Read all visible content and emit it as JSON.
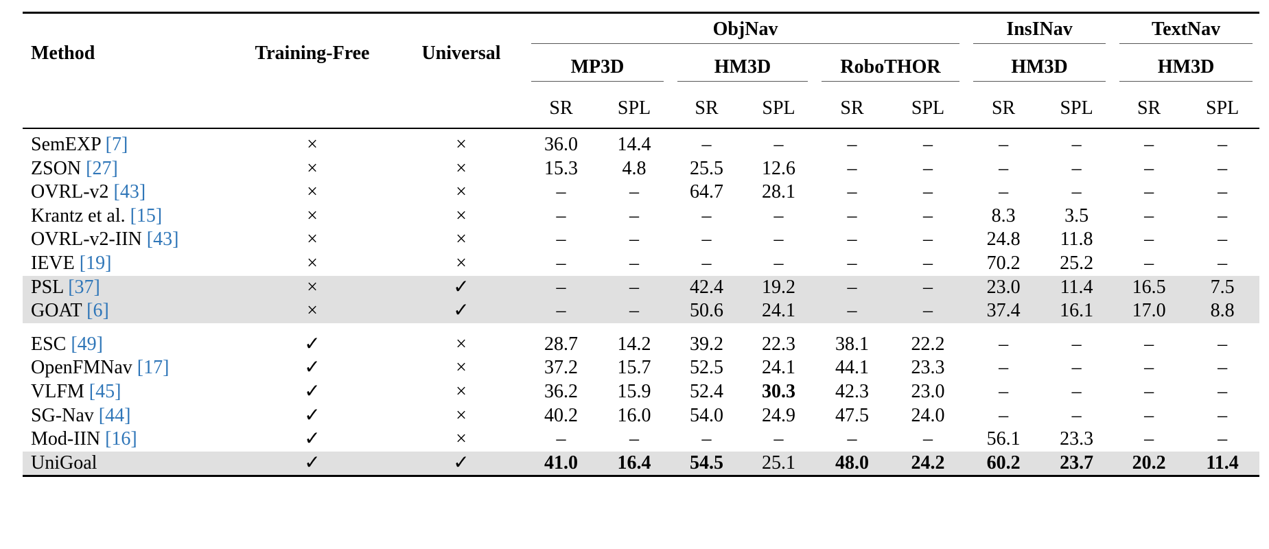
{
  "table": {
    "header": {
      "method": "Method",
      "training_free": "Training-Free",
      "universal": "Universal",
      "tasks": [
        {
          "name": "ObjNav",
          "datasets": [
            "MP3D",
            "HM3D",
            "RoboTHOR"
          ]
        },
        {
          "name": "InsINav",
          "datasets": [
            "HM3D"
          ]
        },
        {
          "name": "TextNav",
          "datasets": [
            "HM3D"
          ]
        }
      ],
      "metrics": [
        "SR",
        "SPL",
        "SR",
        "SPL",
        "SR",
        "SPL",
        "SR",
        "SPL",
        "SR",
        "SPL"
      ]
    },
    "sections": [
      {
        "rows": [
          {
            "method": "SemEXP",
            "ref": "[7]",
            "training_free": "×",
            "universal": "×",
            "cells": [
              "36.0",
              "14.4",
              "–",
              "–",
              "–",
              "–",
              "–",
              "–",
              "–",
              "–"
            ]
          },
          {
            "method": "ZSON",
            "ref": "[27]",
            "training_free": "×",
            "universal": "×",
            "cells": [
              "15.3",
              "4.8",
              "25.5",
              "12.6",
              "–",
              "–",
              "–",
              "–",
              "–",
              "–"
            ]
          },
          {
            "method": "OVRL-v2",
            "ref": "[43]",
            "training_free": "×",
            "universal": "×",
            "cells": [
              "–",
              "–",
              "64.7",
              "28.1",
              "–",
              "–",
              "–",
              "–",
              "–",
              "–"
            ]
          },
          {
            "method": "Krantz et al.",
            "ref": "[15]",
            "training_free": "×",
            "universal": "×",
            "cells": [
              "–",
              "–",
              "–",
              "–",
              "–",
              "–",
              "8.3",
              "3.5",
              "–",
              "–"
            ]
          },
          {
            "method": "OVRL-v2-IIN",
            "ref": "[43]",
            "training_free": "×",
            "universal": "×",
            "cells": [
              "–",
              "–",
              "–",
              "–",
              "–",
              "–",
              "24.8",
              "11.8",
              "–",
              "–"
            ]
          },
          {
            "method": "IEVE",
            "ref": "[19]",
            "training_free": "×",
            "universal": "×",
            "cells": [
              "–",
              "–",
              "–",
              "–",
              "–",
              "–",
              "70.2",
              "25.2",
              "–",
              "–"
            ]
          },
          {
            "method": "PSL",
            "ref": "[37]",
            "training_free": "×",
            "universal": "✓",
            "highlight": true,
            "cells": [
              "–",
              "–",
              "42.4",
              "19.2",
              "–",
              "–",
              "23.0",
              "11.4",
              "16.5",
              "7.5"
            ]
          },
          {
            "method": "GOAT",
            "ref": "[6]",
            "training_free": "×",
            "universal": "✓",
            "highlight": true,
            "cells": [
              "–",
              "–",
              "50.6",
              "24.1",
              "–",
              "–",
              "37.4",
              "16.1",
              "17.0",
              "8.8"
            ]
          }
        ]
      },
      {
        "rows": [
          {
            "method": "ESC",
            "ref": "[49]",
            "training_free": "✓",
            "universal": "×",
            "cells": [
              "28.7",
              "14.2",
              "39.2",
              "22.3",
              "38.1",
              "22.2",
              "–",
              "–",
              "–",
              "–"
            ]
          },
          {
            "method": "OpenFMNav",
            "ref": "[17]",
            "training_free": "✓",
            "universal": "×",
            "cells": [
              "37.2",
              "15.7",
              "52.5",
              "24.1",
              "44.1",
              "23.3",
              "–",
              "–",
              "–",
              "–"
            ]
          },
          {
            "method": "VLFM",
            "ref": "[45]",
            "training_free": "✓",
            "universal": "×",
            "bold": [
              3
            ],
            "cells": [
              "36.2",
              "15.9",
              "52.4",
              "30.3",
              "42.3",
              "23.0",
              "–",
              "–",
              "–",
              "–"
            ]
          },
          {
            "method": "SG-Nav",
            "ref": "[44]",
            "training_free": "✓",
            "universal": "×",
            "cells": [
              "40.2",
              "16.0",
              "54.0",
              "24.9",
              "47.5",
              "24.0",
              "–",
              "–",
              "–",
              "–"
            ]
          },
          {
            "method": "Mod-IIN",
            "ref": "[16]",
            "training_free": "✓",
            "universal": "×",
            "cells": [
              "–",
              "–",
              "–",
              "–",
              "–",
              "–",
              "56.1",
              "23.3",
              "–",
              "–"
            ]
          },
          {
            "method": "UniGoal",
            "training_free": "✓",
            "universal": "✓",
            "highlight": true,
            "bold": [
              0,
              1,
              2,
              4,
              5,
              6,
              7,
              8,
              9
            ],
            "cells": [
              "41.0",
              "16.4",
              "54.5",
              "25.1",
              "48.0",
              "24.2",
              "60.2",
              "23.7",
              "20.2",
              "11.4"
            ]
          }
        ]
      }
    ]
  }
}
